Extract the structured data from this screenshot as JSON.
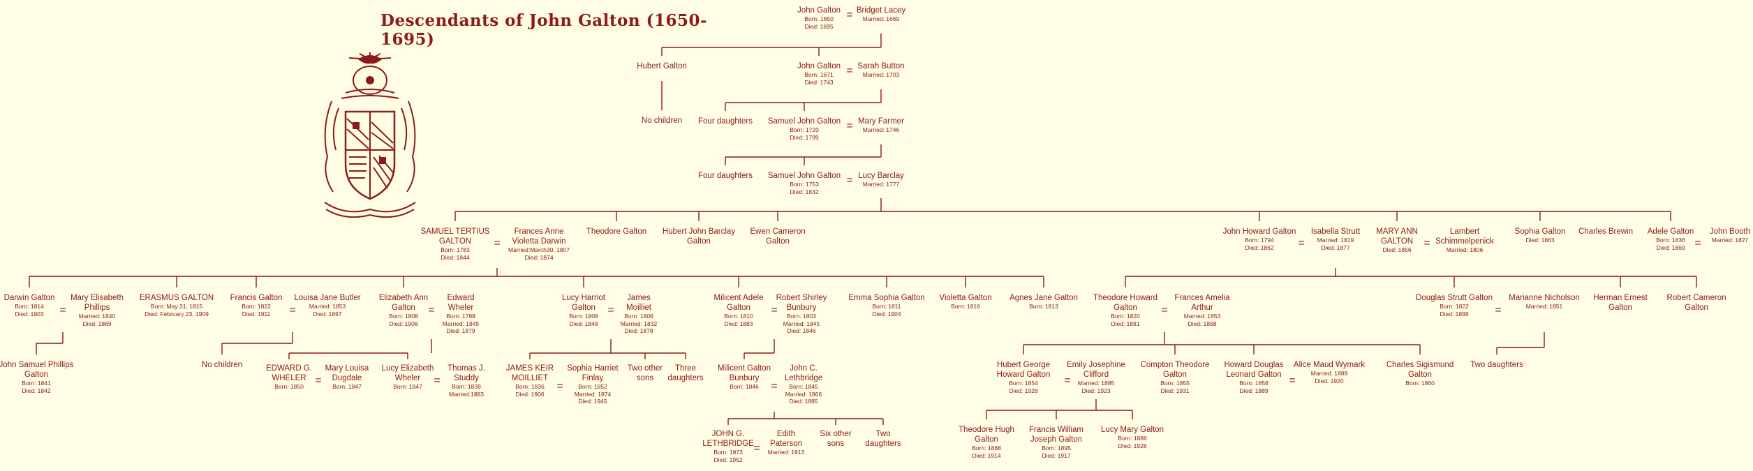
{
  "title": "Descendants of John Galton (1650-1695)",
  "colors": {
    "background": "#fffde4",
    "ink": "#8b1a1a"
  },
  "crest": {
    "icon": "coat-of-arms-icon"
  },
  "tree": {
    "g0": {
      "john_galton_1650": {
        "name": "John Galton",
        "dates": [
          "Born: 1650",
          "Died: 1695"
        ]
      },
      "bridget_lacey": {
        "name": "Bridget Lacey",
        "dates": [
          "Married: 1669"
        ]
      }
    },
    "g1": {
      "hubert_galton": {
        "name": "Hubert Galton",
        "dates": []
      },
      "no_children_hubert": {
        "name": "No children",
        "dates": []
      },
      "john_galton_1671": {
        "name": "John Galton",
        "dates": [
          "Born: 1671",
          "Died: 1743"
        ]
      },
      "sarah_button": {
        "name": "Sarah Button",
        "dates": [
          "Married: 1703"
        ]
      }
    },
    "g2": {
      "four_daughters_1": {
        "name": "Four daughters",
        "dates": []
      },
      "samuel_john_1720": {
        "name": "Samuel John Galton",
        "dates": [
          "Born: 1720",
          "Died: 1799"
        ]
      },
      "mary_farmer": {
        "name": "Mary Farmer",
        "dates": [
          "Married: 1746"
        ]
      }
    },
    "g3": {
      "four_daughters_2": {
        "name": "Four daughters",
        "dates": []
      },
      "samuel_john_1753": {
        "name": "Samuel John Galton",
        "dates": [
          "Born: 1753",
          "Died: 1832"
        ]
      },
      "lucy_barclay": {
        "name": "Lucy Barclay",
        "dates": [
          "Married: 1777"
        ]
      }
    },
    "g4": {
      "samuel_tertius": {
        "name": [
          "SAMUEL TERTIUS",
          "GALTON"
        ],
        "dates": [
          "Born: 1783",
          "Died: 1844"
        ]
      },
      "frances_anne": {
        "name": [
          "Frances Anne",
          "Violetta Darwin"
        ],
        "dates": [
          "Married:March30, 1807",
          "Died: 1874"
        ]
      },
      "theodore_galton": {
        "name": "Theodore Galton",
        "dates": []
      },
      "hubert_john_barclay": {
        "name": [
          "Hubert John Barclay",
          "Galton"
        ],
        "dates": []
      },
      "ewen_cameron": {
        "name": [
          "Ewen Cameron",
          "Galton"
        ],
        "dates": []
      },
      "john_howard": {
        "name": "John Howard Galton",
        "dates": [
          "Born: 1794",
          "Died: 1862"
        ]
      },
      "isabella_strutt": {
        "name": "Isabella Strutt",
        "dates": [
          "Married: 1819",
          "Died: 1877"
        ]
      },
      "mary_ann": {
        "name": [
          "MARY ANN",
          "GALTON"
        ],
        "dates": [
          "Died: 1856"
        ]
      },
      "lambert": {
        "name": [
          "Lambert",
          "Schimmelpenick"
        ],
        "dates": [
          "Married: 1806"
        ]
      },
      "sophia_galton": {
        "name": "Sophia Galton",
        "dates": [
          "Died: 1863"
        ]
      },
      "charles_brewin": {
        "name": "Charles Brewin",
        "dates": []
      },
      "adele_galton": {
        "name": "Adele Galton",
        "dates": [
          "Born: 1836",
          "Died: 1869"
        ]
      },
      "john_booth": {
        "name": "John Booth",
        "dates": [
          "Married: 1827"
        ]
      }
    },
    "g5": {
      "darwin_galton": {
        "name": "Darwin Galton",
        "dates": [
          "Born: 1814",
          "Died: 1903"
        ]
      },
      "mary_elisabeth": {
        "name": [
          "Mary Elisabeth",
          "Phillips"
        ],
        "dates": [
          "Married: 1840",
          "Died: 1869"
        ]
      },
      "erasmus_galton": {
        "name": "ERASMUS GALTON",
        "dates": [
          "Born: May 31, 1815",
          "Died: February 23, 1909"
        ]
      },
      "francis_galton": {
        "name": "Francis Galton",
        "dates": [
          "Born: 1822",
          "Died: 1911"
        ]
      },
      "louisa_jane": {
        "name": "Louisa Jane Butler",
        "dates": [
          "Married: 1853",
          "Died: 1897"
        ]
      },
      "elizabeth_ann": {
        "name": [
          "Elizabeth Ann",
          "Galton"
        ],
        "dates": [
          "Born: 1808",
          "Died: 1906"
        ]
      },
      "edward_wheler": {
        "name": [
          "Edward",
          "Wheler"
        ],
        "dates": [
          "Born: 1798",
          "Married: 1845",
          "Died: 1879"
        ]
      },
      "lucy_harriot": {
        "name": [
          "Lucy Harriot",
          "Galton"
        ],
        "dates": [
          "Born: 1809",
          "Died: 1848"
        ]
      },
      "james_moilliet": {
        "name": [
          "James",
          "Moilliet"
        ],
        "dates": [
          "Born: 1806",
          "Married: 1832",
          "Died: 1878"
        ]
      },
      "milicent_adele": {
        "name": [
          "Milicent Adele",
          "Galton"
        ],
        "dates": [
          "Born: 1810",
          "Died: 1883"
        ]
      },
      "robert_shirley": {
        "name": [
          "Robert Shirley",
          "Bunbury"
        ],
        "dates": [
          "Born: 1803",
          "Married: 1845",
          "Died: 1846"
        ]
      },
      "emma_sophia": {
        "name": "Emma Sophia Galton",
        "dates": [
          "Born: 1811",
          "Died: 1904"
        ]
      },
      "violetta_galton": {
        "name": "Violetta Galton",
        "dates": [
          "Born: 1816"
        ]
      },
      "agnes_jane": {
        "name": "Agnes Jane Galton",
        "dates": [
          "Born: 1813"
        ]
      },
      "theodore_howard": {
        "name": [
          "Theodore Howard",
          "Galton"
        ],
        "dates": [
          "Born: 1820",
          "Died: 1881"
        ]
      },
      "frances_amelia": {
        "name": [
          "Frances Amelia",
          "Arthur"
        ],
        "dates": [
          "Married: 1853",
          "Died: 1898"
        ]
      },
      "douglas_strutt": {
        "name": "Douglas Strutt Galton",
        "dates": [
          "Born: 1822",
          "Died: 1899"
        ]
      },
      "marianne_nicholson": {
        "name": "Marianne Nicholson",
        "dates": [
          "Married: 1851"
        ]
      },
      "herman_ernest": {
        "name": [
          "Herman Ernest",
          "Galton"
        ],
        "dates": []
      },
      "robert_cameron": {
        "name": [
          "Robert Cameron",
          "Galton"
        ],
        "dates": []
      }
    },
    "g6": {
      "john_samuel_phillips": {
        "name": [
          "John Samuel Phillips",
          "Galton"
        ],
        "dates": [
          "Born: 1841",
          "Died: 1842"
        ]
      },
      "no_children_francis": {
        "name": "No children",
        "dates": []
      },
      "edward_g_wheler": {
        "name": [
          "EDWARD G.",
          "WHELER"
        ],
        "dates": [
          "Born: 1850"
        ]
      },
      "mary_louisa": {
        "name": [
          "Mary Louisa",
          "Dugdale"
        ],
        "dates": [
          "Born: 1847"
        ]
      },
      "lucy_elizabeth": {
        "name": [
          "Lucy Elizabeth",
          "Wheler"
        ],
        "dates": [
          "Born: 1847"
        ]
      },
      "thomas_studdy": {
        "name": [
          "Thomas J.",
          "Studdy"
        ],
        "dates": [
          "Born: 1839",
          "Married:1883"
        ]
      },
      "james_keir": {
        "name": [
          "JAMES KEIR",
          "MOILLIET"
        ],
        "dates": [
          "Born: 1836",
          "Died: 1906"
        ]
      },
      "sophia_harriet": {
        "name": [
          "Sophia Harriet",
          "Finlay"
        ],
        "dates": [
          "Born: 1852",
          "Married: 1874",
          "Died: 1945"
        ]
      },
      "two_other_sons": {
        "name": [
          "Two other",
          "sons"
        ],
        "dates": []
      },
      "three_daughters": {
        "name": [
          "Three",
          "daughters"
        ],
        "dates": []
      },
      "milicent_bunbury": {
        "name": [
          "Milicent Galton",
          "Bunbury"
        ],
        "dates": [
          "Born: 1846"
        ]
      },
      "john_c_lethbridge": {
        "name": [
          "John C.",
          "Lethbridge"
        ],
        "dates": [
          "Born: 1845",
          "Married: 1866",
          "Died: 1885"
        ]
      },
      "hubert_george": {
        "name": [
          "Hubert George",
          "Howard Galton"
        ],
        "dates": [
          "Born: 1854",
          "Died: 1928"
        ]
      },
      "emily_josephine": {
        "name": [
          "Emily Josephine",
          "Clifford"
        ],
        "dates": [
          "Married: 1885",
          "Died: 1923"
        ]
      },
      "compton_theodore": {
        "name": [
          "Compton Theodore",
          "Galton"
        ],
        "dates": [
          "Born: 1855",
          "Died: 1931"
        ]
      },
      "howard_douglas": {
        "name": [
          "Howard Douglas",
          "Leonard Galton"
        ],
        "dates": [
          "Born: 1858",
          "Died: 1889"
        ]
      },
      "alice_maud": {
        "name": "Alice Maud Wymark",
        "dates": [
          "Married: 1889",
          "Died: 1920"
        ]
      },
      "charles_sigismund": {
        "name": [
          "Charles Sigismund",
          "Galton"
        ],
        "dates": [
          "Born: 1860"
        ]
      },
      "two_daughters": {
        "name": "Two daughters",
        "dates": []
      }
    },
    "g7": {
      "john_g_lethbridge": {
        "name": [
          "JOHN G.",
          "LETHBRIDGE"
        ],
        "dates": [
          "Born: 1873",
          "Died: 1952"
        ]
      },
      "edith_paterson": {
        "name": [
          "Edith",
          "Paterson"
        ],
        "dates": [
          "Married: 1913"
        ]
      },
      "six_other_sons": {
        "name": [
          "Six other",
          "sons"
        ],
        "dates": []
      },
      "two_daughters_2": {
        "name": [
          "Two",
          "daughters"
        ],
        "dates": []
      },
      "theodore_hugh": {
        "name": [
          "Theodore Hugh",
          "Galton"
        ],
        "dates": [
          "Born: 1888",
          "Died: 1914"
        ]
      },
      "francis_william": {
        "name": [
          "Francis William",
          "Joseph Galton"
        ],
        "dates": [
          "Born: 1895",
          "Died: 1917"
        ]
      },
      "lucy_mary": {
        "name": "Lucy Mary Galton",
        "dates": [
          "Born: 1886",
          "Died: 1928"
        ]
      }
    }
  }
}
